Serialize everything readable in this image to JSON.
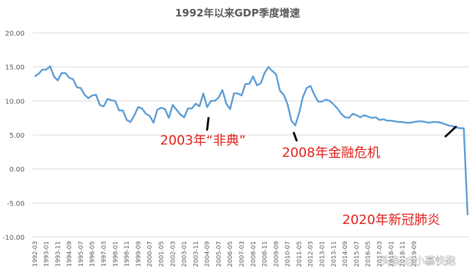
{
  "chart_data": {
    "type": "line",
    "title": "1992年以来GDP季度增速",
    "xlabel": "",
    "ylabel": "",
    "ylim": [
      -10,
      20
    ],
    "y_ticks": [
      "20.00",
      "15.00",
      "10.00",
      "5.00",
      "0.00",
      "-5.00",
      "-10.00"
    ],
    "grid": true,
    "legend": "none",
    "line_color": "#5b9bd5",
    "annotation_color": "#e0201b",
    "x_ticks": [
      "1992-03",
      "1993-01",
      "1993-11",
      "1994-09",
      "1995-07",
      "1996-05",
      "1997-03",
      "1998-01",
      "1998-11",
      "1999-09",
      "2000-07",
      "2001-05",
      "2002-03",
      "2003-01",
      "2003-11",
      "2004-09",
      "2005-07",
      "2006-05",
      "2007-03",
      "2008-01",
      "2008-11",
      "2009-09",
      "2010-07",
      "2011-05",
      "2012-03",
      "2013-01",
      "2013-11",
      "2014-09",
      "2015-07",
      "2016-05",
      "2017-03",
      "2018-01",
      "2018-11",
      "2019-09"
    ],
    "series": [
      {
        "values": [
          13.6,
          14.0,
          14.6,
          14.6,
          15.1,
          13.6,
          13.0,
          14.1,
          14.1,
          13.4,
          13.2,
          12.0,
          11.9,
          10.9,
          10.4,
          10.8,
          10.9,
          9.4,
          9.2,
          10.3,
          10.1,
          10.0,
          8.6,
          8.6,
          7.2,
          6.9,
          7.9,
          9.1,
          8.9,
          8.1,
          7.8,
          6.8,
          8.7,
          9.0,
          8.8,
          7.5,
          9.4,
          8.7,
          8.0,
          7.6,
          8.9,
          8.9,
          9.6,
          9.2,
          11.1,
          9.1,
          10.0,
          10.0,
          10.5,
          11.6,
          9.6,
          8.8,
          11.1,
          11.1,
          10.8,
          12.5,
          12.5,
          13.6,
          12.3,
          12.6,
          14.1,
          15.0,
          14.4,
          13.9,
          11.5,
          10.9,
          9.5,
          7.1,
          6.4,
          8.2,
          10.6,
          11.9,
          12.2,
          10.9,
          9.9,
          9.9,
          10.2,
          10.0,
          9.5,
          8.9,
          8.1,
          7.6,
          7.5,
          8.1,
          7.9,
          7.6,
          7.9,
          7.7,
          7.5,
          7.6,
          7.2,
          7.3,
          7.1,
          7.1,
          7.0,
          6.9,
          6.9,
          6.8,
          6.8,
          6.9,
          7.0,
          7.0,
          6.9,
          6.8,
          6.9,
          6.9,
          6.8,
          6.6,
          6.4,
          6.3,
          6.1,
          6.0,
          6.0,
          -6.8
        ]
      }
    ],
    "annotations": [
      {
        "text": "2003年“非典”",
        "at_index": 45
      },
      {
        "text": "2008年金融危机",
        "at_index": 68
      },
      {
        "text": "2020年新冠肺炎",
        "at_index": 111
      }
    ]
  },
  "watermark": "头条 @小慕快跑"
}
